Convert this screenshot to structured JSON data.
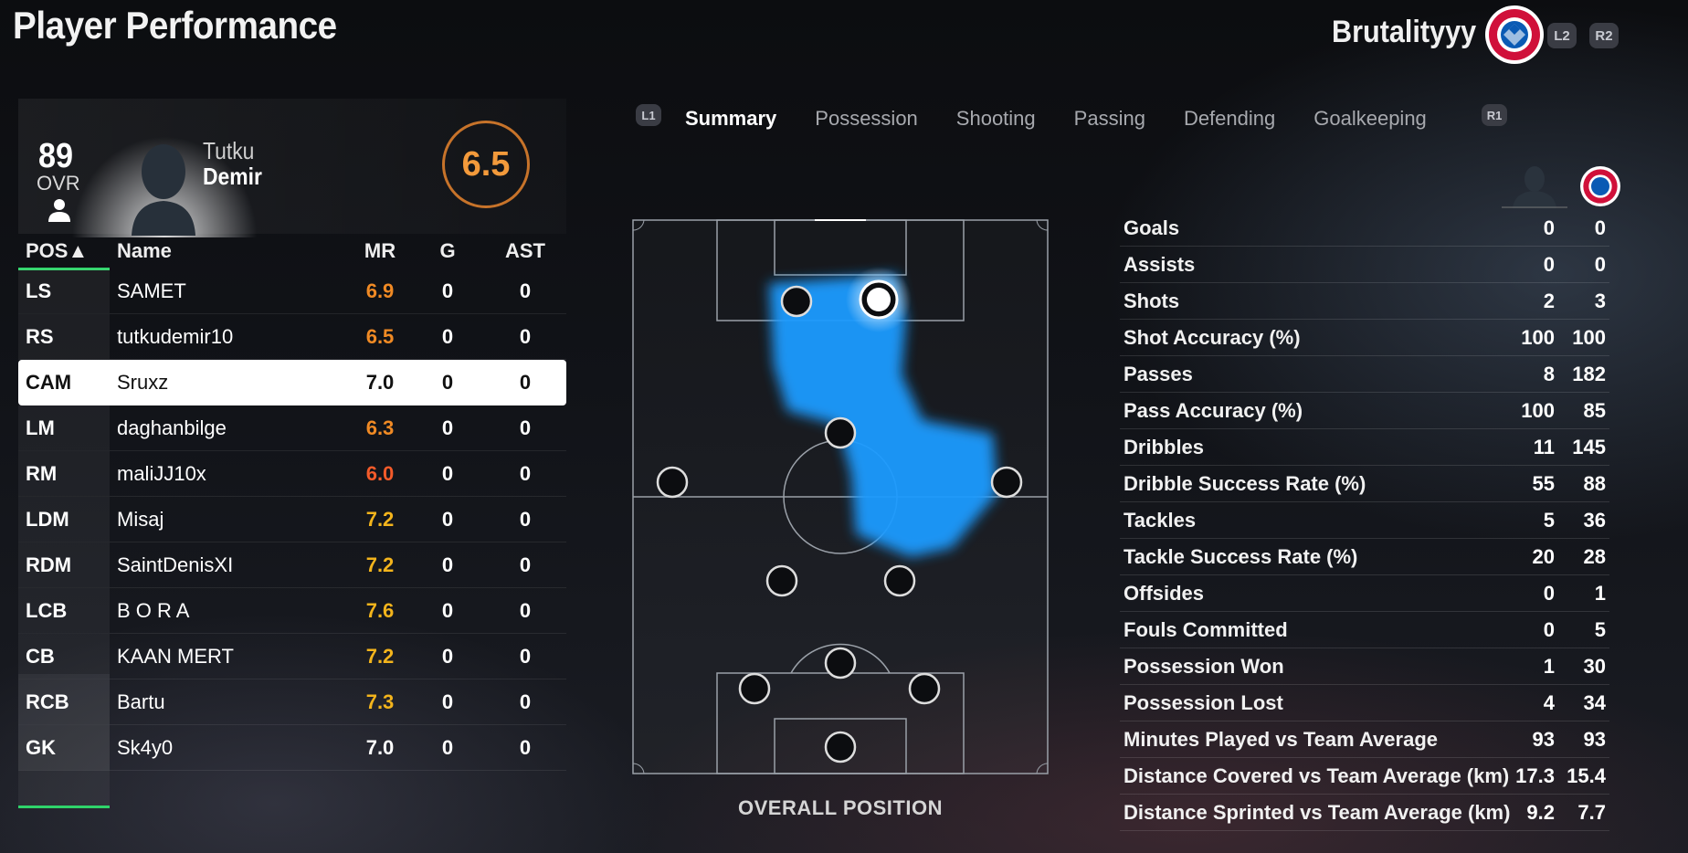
{
  "header": {
    "title": "Player Performance",
    "username": "Brutalityyy",
    "club_badge_icon": "bayern-crest-icon",
    "hint_left": "L2",
    "hint_right": "R2"
  },
  "player": {
    "ovr": "89",
    "ovr_label": "OVR",
    "first_name": "Tutku",
    "last_name": "Demir",
    "match_rating": "6.5"
  },
  "table": {
    "headers": {
      "pos": "POS▲",
      "name": "Name",
      "mr": "MR",
      "g": "G",
      "ast": "AST"
    },
    "rows": [
      {
        "pos": "LS",
        "name": "SAMET",
        "mr": "6.9",
        "g": "0",
        "ast": "0"
      },
      {
        "pos": "RS",
        "name": "tutkudemir10",
        "mr": "6.5",
        "g": "0",
        "ast": "0"
      },
      {
        "pos": "CAM",
        "name": "Sruxz",
        "mr": "7.0",
        "g": "0",
        "ast": "0"
      },
      {
        "pos": "LM",
        "name": "daghanbilge",
        "mr": "6.3",
        "g": "0",
        "ast": "0"
      },
      {
        "pos": "RM",
        "name": "maliJJ10x",
        "mr": "6.0",
        "g": "0",
        "ast": "0"
      },
      {
        "pos": "LDM",
        "name": "Misaj",
        "mr": "7.2",
        "g": "0",
        "ast": "0"
      },
      {
        "pos": "RDM",
        "name": "SaintDenisXI",
        "mr": "7.2",
        "g": "0",
        "ast": "0"
      },
      {
        "pos": "LCB",
        "name": "B O R A",
        "mr": "7.6",
        "g": "0",
        "ast": "0"
      },
      {
        "pos": "CB",
        "name": "KAAN MERT",
        "mr": "7.2",
        "g": "0",
        "ast": "0"
      },
      {
        "pos": "RCB",
        "name": "Bartu",
        "mr": "7.3",
        "g": "0",
        "ast": "0"
      },
      {
        "pos": "GK",
        "name": "Sk4y0",
        "mr": "7.0",
        "g": "0",
        "ast": "0"
      }
    ],
    "selected_row": 2
  },
  "tabs": {
    "hint_left": "L1",
    "hint_right": "R1",
    "items": [
      {
        "label": "Summary",
        "active": true
      },
      {
        "label": "Possession",
        "active": false
      },
      {
        "label": "Shooting",
        "active": false
      },
      {
        "label": "Passing",
        "active": false
      },
      {
        "label": "Defending",
        "active": false
      },
      {
        "label": "Goalkeeping",
        "active": false
      }
    ]
  },
  "pitch": {
    "label": "OVERALL POSITION",
    "heatmap_color": "#1e9bff"
  },
  "stats": [
    {
      "label": "Goals",
      "player": "0",
      "team": "0"
    },
    {
      "label": "Assists",
      "player": "0",
      "team": "0"
    },
    {
      "label": "Shots",
      "player": "2",
      "team": "3"
    },
    {
      "label": "Shot Accuracy (%)",
      "player": "100",
      "team": "100"
    },
    {
      "label": "Passes",
      "player": "8",
      "team": "182"
    },
    {
      "label": "Pass Accuracy (%)",
      "player": "100",
      "team": "85"
    },
    {
      "label": "Dribbles",
      "player": "11",
      "team": "145"
    },
    {
      "label": "Dribble Success Rate (%)",
      "player": "55",
      "team": "88"
    },
    {
      "label": "Tackles",
      "player": "5",
      "team": "36"
    },
    {
      "label": "Tackle Success Rate (%)",
      "player": "20",
      "team": "28"
    },
    {
      "label": "Offsides",
      "player": "0",
      "team": "1"
    },
    {
      "label": "Fouls Committed",
      "player": "0",
      "team": "5"
    },
    {
      "label": "Possession Won",
      "player": "1",
      "team": "30"
    },
    {
      "label": "Possession Lost",
      "player": "4",
      "team": "34"
    },
    {
      "label": "Minutes Played vs Team Average",
      "player": "93",
      "team": "93"
    },
    {
      "label": "Distance Covered vs Team Average (km)",
      "player": "17.3",
      "team": "15.4"
    },
    {
      "label": "Distance Sprinted vs Team Average (km)",
      "player": "9.2",
      "team": "7.7"
    }
  ],
  "colors": {
    "accent_green": "#2fd46a",
    "rating_orange": "#f08a24",
    "rating_yellow": "#f3b41c",
    "rating_red": "#f45b2a"
  }
}
